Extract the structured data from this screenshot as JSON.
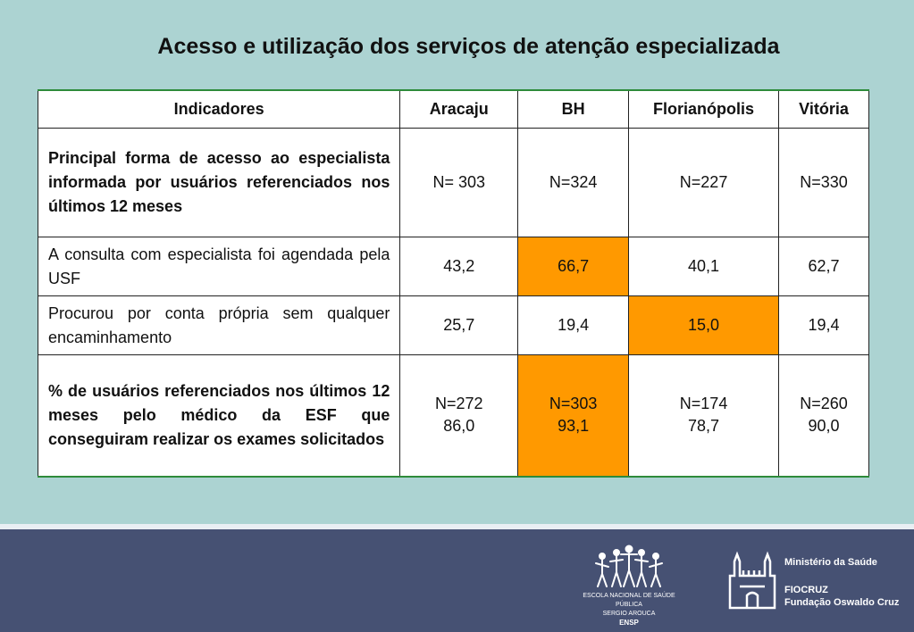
{
  "title": "Acesso e utilização dos serviços de atenção especializada",
  "table": {
    "headers": [
      "Indicadores",
      "Aracaju",
      "BH",
      "Florianópolis",
      "Vitória"
    ],
    "rows": [
      {
        "indicator": "Principal forma de acesso ao especialista informada por usuários referenciados nos últimos 12 meses",
        "values": [
          [
            "N= 303"
          ],
          [
            "N=324"
          ],
          [
            "N=227"
          ],
          [
            "N=330"
          ]
        ]
      },
      {
        "indicator": "A consulta com especialista foi agendada pela USF",
        "values": [
          [
            "43,2"
          ],
          [
            "66,7"
          ],
          [
            "40,1"
          ],
          [
            "62,7"
          ]
        ]
      },
      {
        "indicator": "Procurou por conta própria sem qualquer encaminhamento",
        "values": [
          [
            "25,7"
          ],
          [
            "19,4"
          ],
          [
            "15,0"
          ],
          [
            "19,4"
          ]
        ]
      },
      {
        "indicator": "% de usuários referenciados nos últimos 12 meses pelo médico da ESF que conseguiram realizar os exames solicitados",
        "values": [
          [
            "N=272",
            "86,0"
          ],
          [
            "N=303",
            "93,1"
          ],
          [
            "N=174",
            "78,7"
          ],
          [
            "N=260",
            "90,0"
          ]
        ]
      }
    ]
  },
  "footer": {
    "ensp": {
      "line1": "ESCOLA NACIONAL DE SAÚDE PÚBLICA",
      "line2": "SERGIO AROUCA",
      "abbr": "ENSP"
    },
    "ministry": "Ministério da Saúde",
    "fiocruz": "FIOCRUZ",
    "fiocruz_full": "Fundação Oswaldo Cruz"
  },
  "colors": {
    "background": "#acd3d2",
    "highlight": "#ff9900",
    "footer": "#465173",
    "table_rule": "#2e8b3a"
  },
  "icons": [
    "ensp-figures-logo-icon",
    "fiocruz-castle-logo-icon"
  ]
}
